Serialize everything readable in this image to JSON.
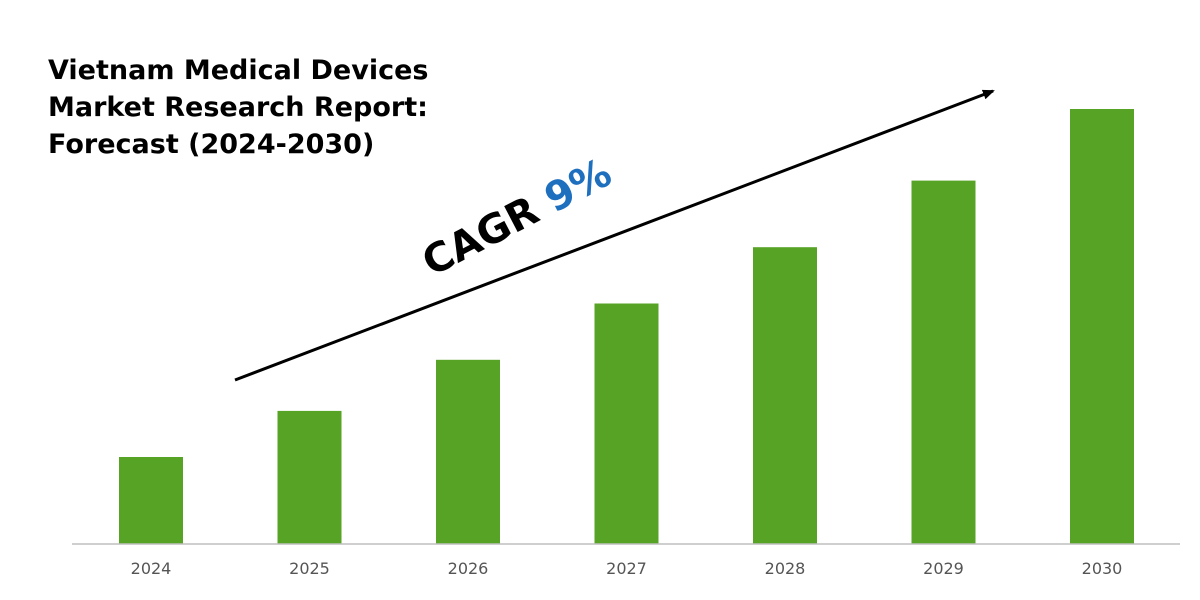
{
  "title": {
    "lines": [
      "Vietnam Medical Devices",
      "Market Research Report:",
      "Forecast (2024-2030)"
    ]
  },
  "annotation": {
    "cagr_text": "CAGR",
    "cagr_value": "9%",
    "cagr_value_color": "#1f6fbf",
    "arrow_direction": "upward trend"
  },
  "colors": {
    "bar": "#57a325",
    "axis": "#bfbfbf",
    "arrow": "#000000"
  },
  "chart_data": {
    "type": "bar",
    "title": "Vietnam Medical Devices Market Research Report: Forecast (2024-2030)",
    "categories": [
      "2024",
      "2025",
      "2026",
      "2027",
      "2028",
      "2029",
      "2030"
    ],
    "values": [
      1.0,
      1.09,
      1.19,
      1.3,
      1.41,
      1.54,
      1.68
    ],
    "value_note": "relative scale; 2024 = 1.00",
    "xlabel": "",
    "ylabel": "",
    "grid": false,
    "legend": "none",
    "y_axis_visible": false
  }
}
